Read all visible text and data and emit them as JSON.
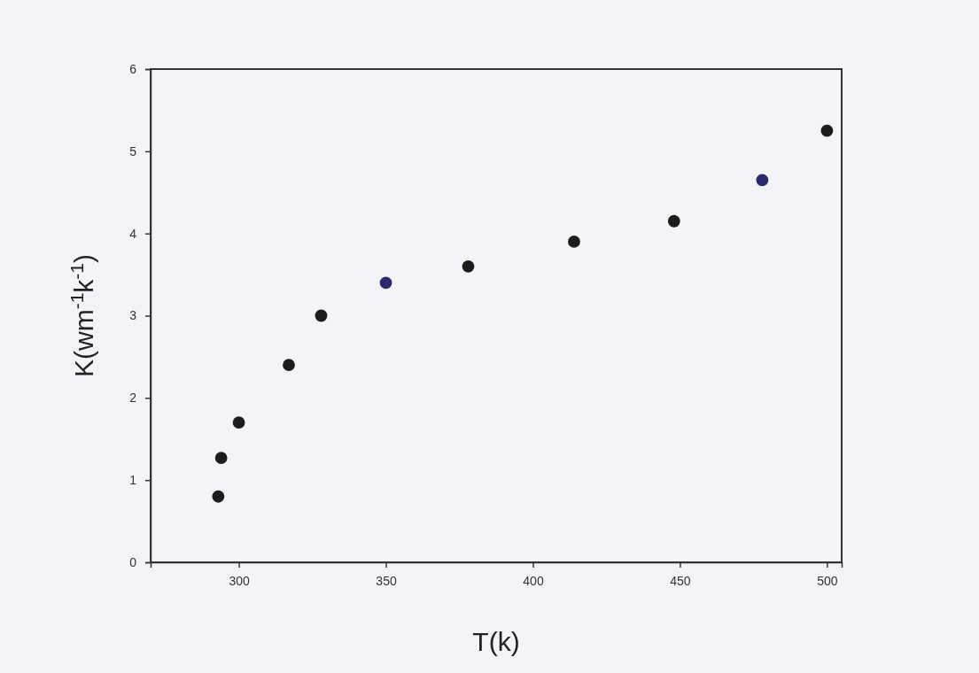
{
  "chart_data": {
    "type": "scatter",
    "xlabel": "T(k)",
    "ylabel": "K(wm$^{-1}$k$^{-1}$)",
    "x": [
      293,
      294,
      300,
      317,
      328,
      350,
      378,
      414,
      448,
      478,
      500
    ],
    "values": [
      0.8,
      1.27,
      1.7,
      2.4,
      3.0,
      3.4,
      3.6,
      3.9,
      4.15,
      4.65,
      5.25
    ],
    "colors": [
      "#1c1c1c",
      "#1c1c1c",
      "#1c1c1c",
      "#1c1c1c",
      "#1c1c1c",
      "#2b2a6e",
      "#1c1c1c",
      "#1c1c1c",
      "#1c1c1c",
      "#2b2a6e",
      "#1c1c1c"
    ],
    "xlim": [
      270,
      505
    ],
    "xticks": [
      300,
      350,
      400,
      450,
      500
    ],
    "ylim": [
      0,
      6
    ],
    "yticks": [
      0,
      1,
      2,
      3,
      4,
      5,
      6
    ],
    "marker": "circle",
    "grid": false
  }
}
